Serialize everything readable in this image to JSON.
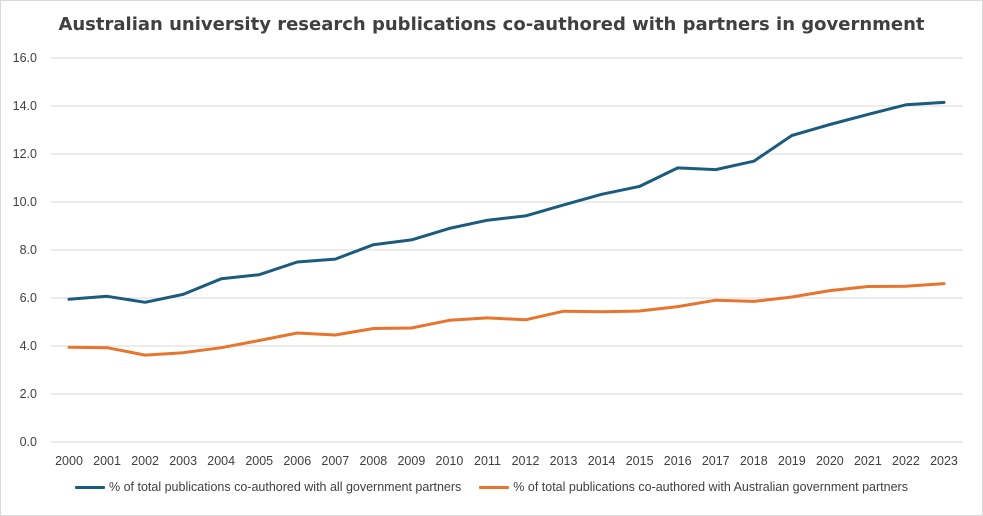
{
  "chart_data": {
    "type": "line",
    "title": "Australian university research publications co-authored with partners in government",
    "xlabel": "",
    "ylabel": "",
    "x": [
      "2000",
      "2001",
      "2002",
      "2003",
      "2004",
      "2005",
      "2006",
      "2007",
      "2008",
      "2009",
      "2010",
      "2011",
      "2012",
      "2013",
      "2014",
      "2015",
      "2016",
      "2017",
      "2018",
      "2019",
      "2020",
      "2021",
      "2022",
      "2023"
    ],
    "ylim": [
      0,
      16
    ],
    "yticks": [
      "0.0",
      "2.0",
      "4.0",
      "6.0",
      "8.0",
      "10.0",
      "12.0",
      "14.0",
      "16.0"
    ],
    "grid": true,
    "legend_position": "bottom",
    "series": [
      {
        "name": "% of total publications co-authored with all government partners",
        "color": "#1b5b7e",
        "values": [
          5.95,
          6.07,
          5.82,
          6.15,
          6.8,
          6.97,
          7.5,
          7.62,
          8.22,
          8.42,
          8.9,
          9.24,
          9.42,
          9.88,
          10.32,
          10.65,
          11.42,
          11.35,
          11.7,
          12.77,
          13.23,
          13.65,
          14.05,
          14.15
        ]
      },
      {
        "name": "% of total publications co-authored with Australian government partners",
        "color": "#e8742e",
        "values": [
          3.95,
          3.93,
          3.62,
          3.72,
          3.93,
          4.23,
          4.54,
          4.46,
          4.73,
          4.75,
          5.07,
          5.17,
          5.09,
          5.45,
          5.43,
          5.46,
          5.64,
          5.91,
          5.86,
          6.04,
          6.31,
          6.48,
          6.49,
          6.6
        ]
      }
    ]
  }
}
